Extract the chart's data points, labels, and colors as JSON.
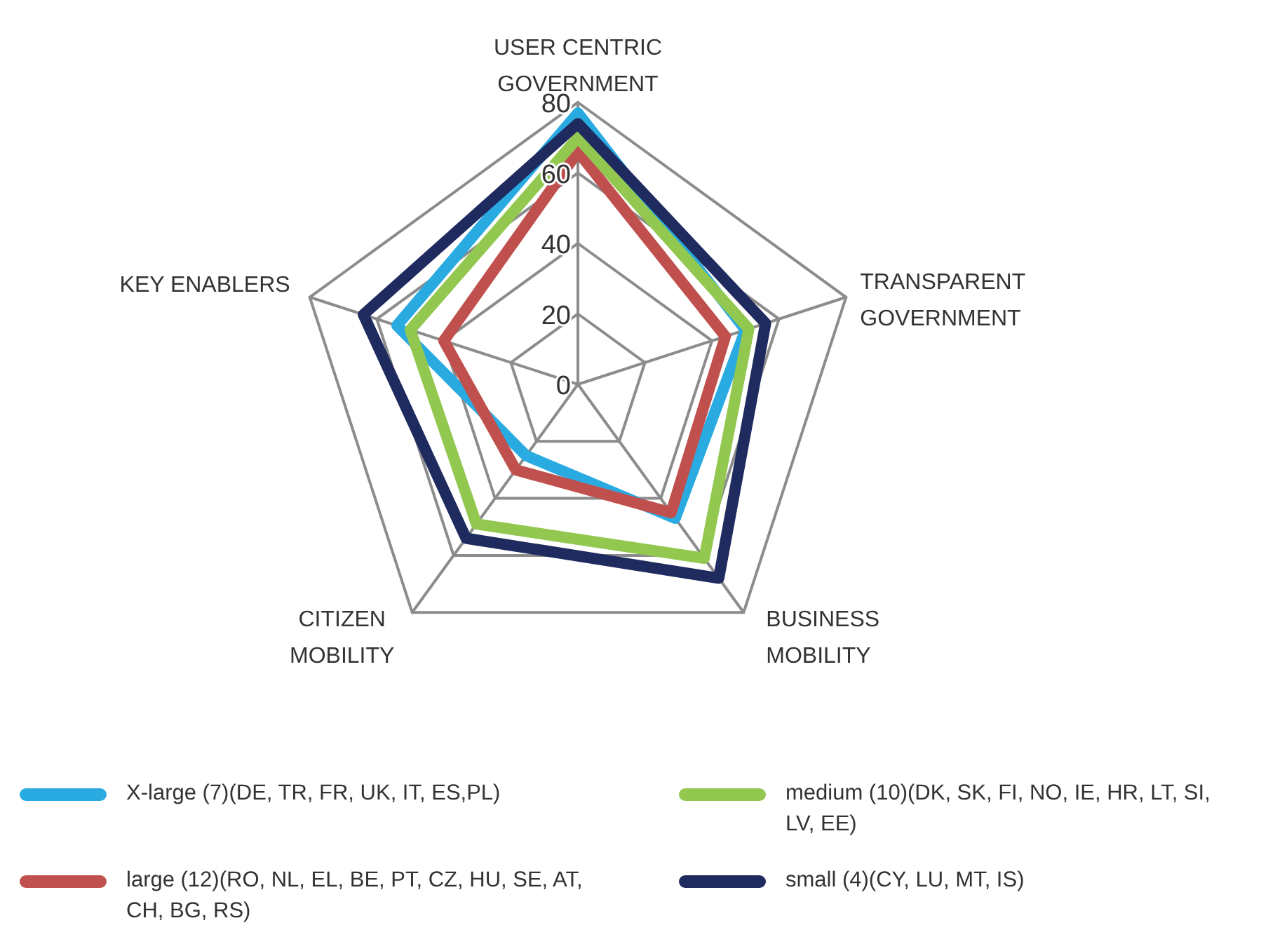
{
  "chart_data": {
    "type": "radar",
    "categories": [
      "USER CENTRIC GOVERNMENT",
      "TRANSPARENT GOVERNMENT",
      "BUSINESS MOBILITY",
      "CITIZEN MOBILITY",
      "KEY ENABLERS"
    ],
    "ylim": [
      0,
      80
    ],
    "yticks": [
      0,
      20,
      40,
      60,
      80
    ],
    "legend": "bottom",
    "series": [
      {
        "name": "X-large (7)(DE, TR, FR, UK, IT, ES,PL)",
        "color": "#29abe2",
        "values": [
          77,
          50,
          47,
          25,
          54
        ]
      },
      {
        "name": "large (12)(RO, NL, EL, BE, PT, CZ, HU, SE, AT, CH, BG, RS)",
        "color": "#c0504d",
        "values": [
          66,
          44,
          45,
          30,
          40
        ]
      },
      {
        "name": "medium (10)(DK, SK, FI, NO, IE, HR, LT, SI, LV, EE)",
        "color": "#92c850",
        "values": [
          70,
          51,
          61,
          49,
          50
        ]
      },
      {
        "name": "small (4)(CY, LU, MT, IS)",
        "color": "#1f2a5e",
        "values": [
          74,
          56,
          68,
          54,
          64
        ]
      }
    ]
  }
}
